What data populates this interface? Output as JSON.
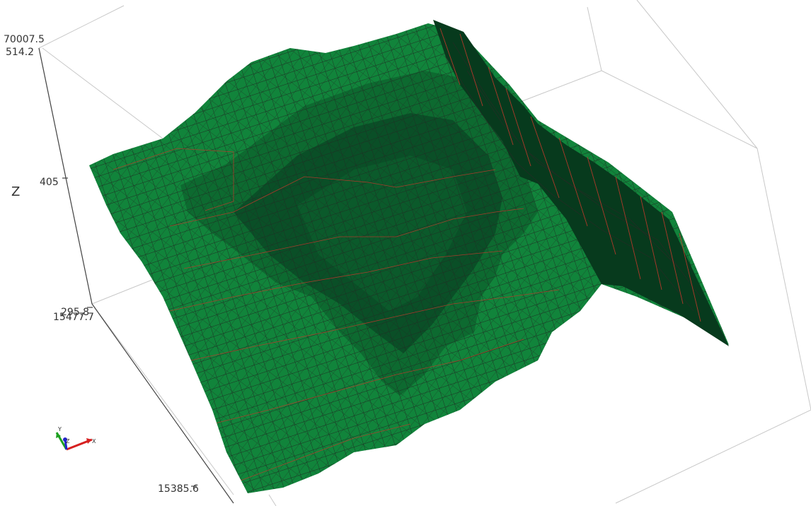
{
  "viewport": {
    "axis_labels": {
      "z_title": "Z",
      "z_top": "514.2",
      "z_mid": "405",
      "z_bottom": "295.8",
      "y_top": "70007.5",
      "x_left": "15477.7",
      "x_bottom": "15385.6"
    },
    "orientation_widget": {
      "x": "X",
      "y": "Y",
      "z": "Z"
    },
    "colors": {
      "surface_light": "#11843b",
      "surface_mid": "#0d6a30",
      "surface_dark": "#0a4f27",
      "surface_darkest": "#073a1d",
      "grid_lines": "#1e2f23",
      "contour_lines": "#c0392b",
      "bbox_lines": "#c8c8c8",
      "axis_x": "#d62020",
      "axis_y": "#1fa021",
      "axis_z": "#2222cc"
    }
  }
}
